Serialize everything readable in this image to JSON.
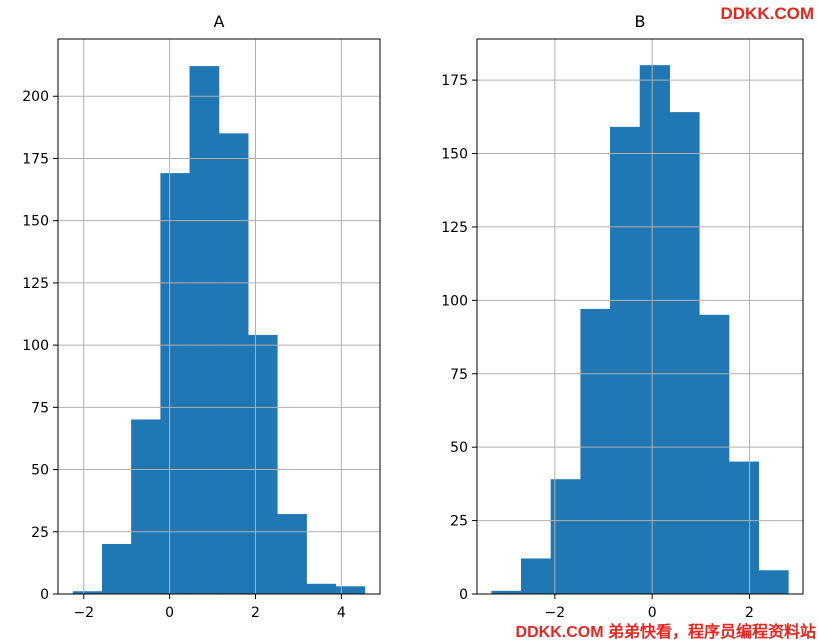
{
  "watermark": {
    "top": "DDKK.COM",
    "bottom": "DDKK.COM 弟弟快看，程序员编程资料站",
    "color": "#e8261f"
  },
  "style": {
    "bar_color": "#1f77b4",
    "grid_color": "#b0b0b0"
  },
  "chart_data": [
    {
      "type": "bar",
      "title": "A",
      "bins": [
        {
          "x0": -2.25,
          "x1": -1.57,
          "count": 1
        },
        {
          "x0": -1.57,
          "x1": -0.89,
          "count": 20
        },
        {
          "x0": -0.89,
          "x1": -0.21,
          "count": 70
        },
        {
          "x0": -0.21,
          "x1": 0.47,
          "count": 169
        },
        {
          "x0": 0.47,
          "x1": 1.15,
          "count": 212
        },
        {
          "x0": 1.15,
          "x1": 1.83,
          "count": 185
        },
        {
          "x0": 1.83,
          "x1": 2.51,
          "count": 104
        },
        {
          "x0": 2.51,
          "x1": 3.19,
          "count": 32
        },
        {
          "x0": 3.19,
          "x1": 3.87,
          "count": 4
        },
        {
          "x0": 3.87,
          "x1": 4.55,
          "count": 3
        }
      ],
      "xlim": [
        -2.6,
        4.9
      ],
      "ylim": [
        0,
        223
      ],
      "xticks": [
        -2,
        0,
        2,
        4
      ],
      "xtick_labels": [
        "−2",
        "0",
        "2",
        "4"
      ],
      "yticks": [
        0,
        25,
        50,
        75,
        100,
        125,
        150,
        175,
        200
      ],
      "ytick_labels": [
        "0",
        "25",
        "50",
        "75",
        "100",
        "125",
        "150",
        "175",
        "200"
      ],
      "grid": true
    },
    {
      "type": "bar",
      "title": "B",
      "bins": [
        {
          "x0": -3.3,
          "x1": -2.69,
          "count": 1
        },
        {
          "x0": -2.69,
          "x1": -2.08,
          "count": 12
        },
        {
          "x0": -2.08,
          "x1": -1.47,
          "count": 39
        },
        {
          "x0": -1.47,
          "x1": -0.86,
          "count": 97
        },
        {
          "x0": -0.86,
          "x1": -0.25,
          "count": 159
        },
        {
          "x0": -0.25,
          "x1": 0.36,
          "count": 180
        },
        {
          "x0": 0.36,
          "x1": 0.97,
          "count": 164
        },
        {
          "x0": 0.97,
          "x1": 1.58,
          "count": 95
        },
        {
          "x0": 1.58,
          "x1": 2.19,
          "count": 45
        },
        {
          "x0": 2.19,
          "x1": 2.8,
          "count": 8
        }
      ],
      "xlim": [
        -3.6,
        3.1
      ],
      "ylim": [
        0,
        189
      ],
      "xticks": [
        -2,
        0,
        2
      ],
      "xtick_labels": [
        "−2",
        "0",
        "2"
      ],
      "yticks": [
        0,
        25,
        50,
        75,
        100,
        125,
        150,
        175
      ],
      "ytick_labels": [
        "0",
        "25",
        "50",
        "75",
        "100",
        "125",
        "150",
        "175"
      ],
      "grid": true
    }
  ]
}
